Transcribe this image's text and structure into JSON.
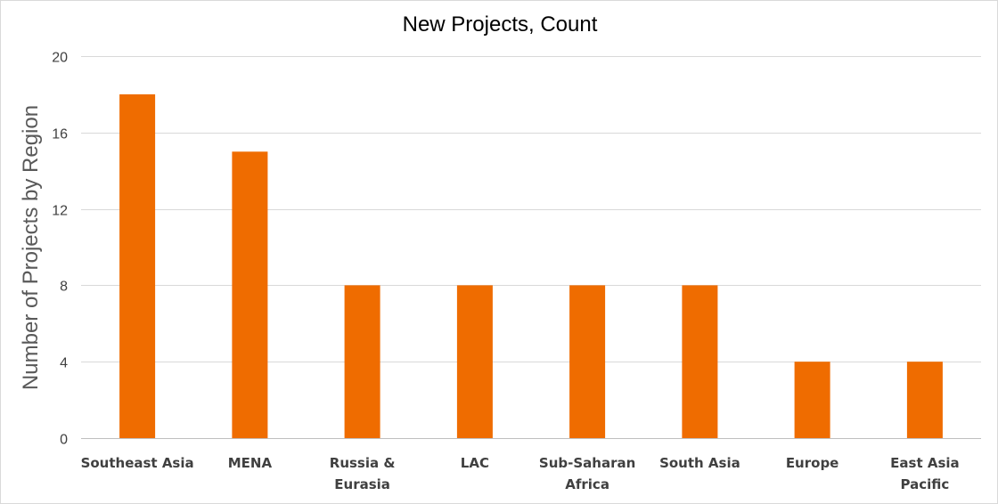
{
  "chart_data": {
    "type": "bar",
    "title": "New Projects, Count",
    "xlabel": "",
    "ylabel": "Number of Projects by Region",
    "categories": [
      [
        "Southeast Asia"
      ],
      [
        "MENA"
      ],
      [
        "Russia &",
        "Eurasia"
      ],
      [
        "LAC"
      ],
      [
        "Sub-Saharan",
        "Africa"
      ],
      [
        "South Asia"
      ],
      [
        "Europe"
      ],
      [
        "East Asia",
        "Pacific"
      ]
    ],
    "values": [
      18,
      15,
      8,
      8,
      8,
      8,
      4,
      4
    ],
    "ylim": [
      0,
      20
    ],
    "yticks": [
      0,
      4,
      8,
      12,
      16,
      20
    ],
    "grid": true,
    "legend": "none",
    "bar_color": "#EF6C00"
  }
}
